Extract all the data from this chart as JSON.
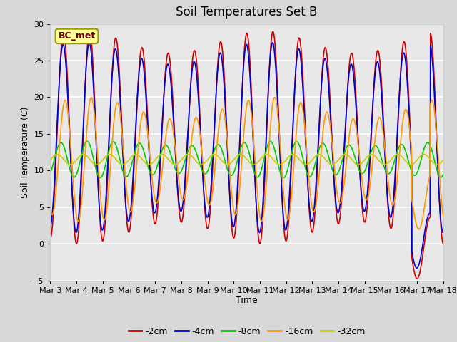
{
  "title": "Soil Temperatures Set B",
  "xlabel": "Time",
  "ylabel": "Soil Temperature (C)",
  "ylim": [
    -5,
    30
  ],
  "annotation": "BC_met",
  "legend_labels": [
    "-2cm",
    "-4cm",
    "-8cm",
    "-16cm",
    "-32cm"
  ],
  "legend_colors": [
    "#cc0000",
    "#0000cc",
    "#00cc00",
    "#ff9900",
    "#cccc00"
  ],
  "x_tick_labels": [
    "Mar 3",
    "Mar 4",
    "Mar 5",
    "Mar 6",
    "Mar 7",
    "Mar 8",
    "Mar 9",
    "Mar 10",
    "Mar 11",
    "Mar 12",
    "Mar 13",
    "Mar 14",
    "Mar 15",
    "Mar 16",
    "Mar 17",
    "Mar 18"
  ],
  "plot_bg_color": "#e8e8e8",
  "fig_bg_color": "#d8d8d8",
  "grid_color": "#ffffff",
  "n_days": 15
}
